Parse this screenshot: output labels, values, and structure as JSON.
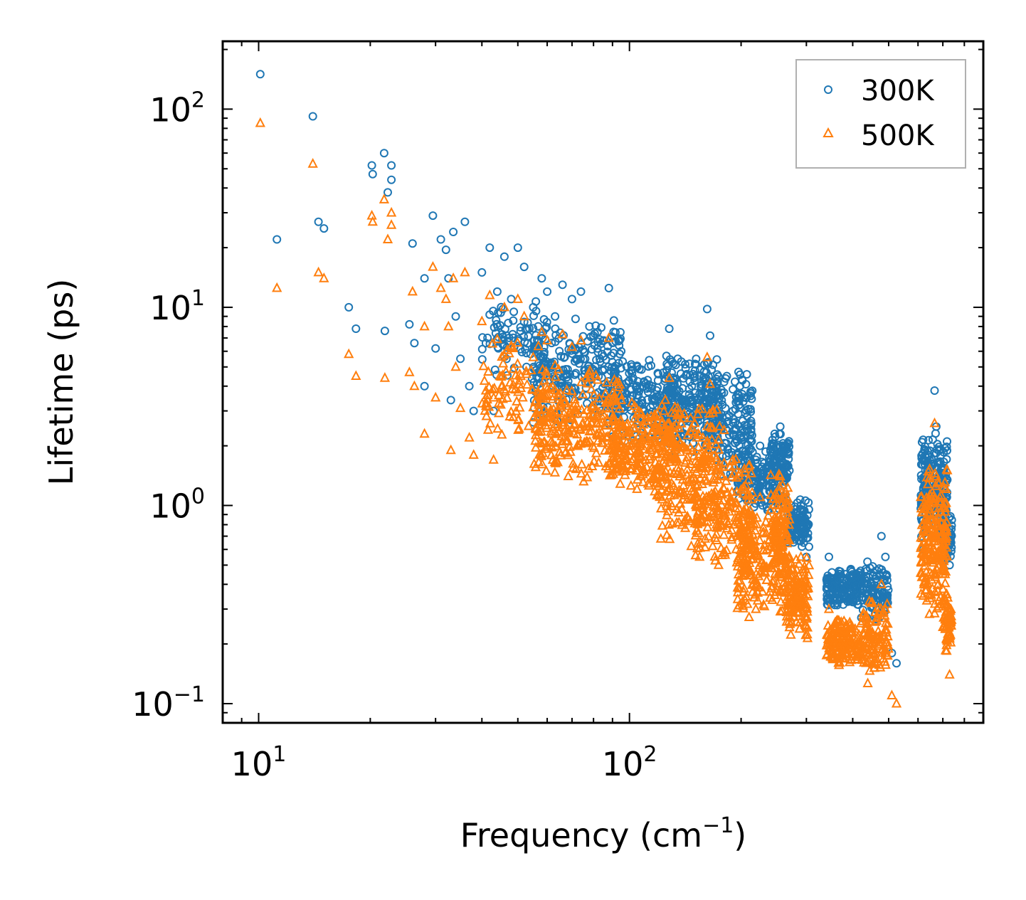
{
  "chart_data": {
    "type": "scatter",
    "title": "",
    "xlabel": "Frequency (cm",
    "xlabel_sup": "−1",
    "xlabel_end": ")",
    "ylabel": "Lifetime (ps)",
    "xscale": "log",
    "yscale": "log",
    "xlim": [
      8,
      900
    ],
    "ylim": [
      0.08,
      220
    ],
    "x_ticks": [
      {
        "value": 10,
        "base": "10",
        "exp": "1"
      },
      {
        "value": 100,
        "base": "10",
        "exp": "2"
      }
    ],
    "y_ticks": [
      {
        "value": 0.1,
        "base": "10",
        "exp": "−1"
      },
      {
        "value": 1,
        "base": "10",
        "exp": "0"
      },
      {
        "value": 10,
        "base": "10",
        "exp": "1"
      },
      {
        "value": 100,
        "base": "10",
        "exp": "2"
      }
    ],
    "legend_position": "top-right",
    "series": [
      {
        "name": "300K",
        "color": "#1f77b4",
        "marker": "circle",
        "points": [
          [
            10.1,
            150
          ],
          [
            11.2,
            22
          ],
          [
            14,
            92
          ],
          [
            14.5,
            27
          ],
          [
            15,
            25
          ],
          [
            17.5,
            10
          ],
          [
            18.3,
            7.8
          ],
          [
            20.2,
            52
          ],
          [
            20.3,
            47
          ],
          [
            21.8,
            60
          ],
          [
            21.9,
            7.6
          ],
          [
            22.3,
            38
          ],
          [
            22.8,
            52
          ],
          [
            22.8,
            44
          ],
          [
            25.5,
            8.2
          ],
          [
            26,
            21
          ],
          [
            26.3,
            6.6
          ],
          [
            28,
            14
          ],
          [
            28,
            4
          ],
          [
            29.5,
            29
          ],
          [
            30,
            6.2
          ],
          [
            31,
            22
          ],
          [
            32,
            19.5
          ],
          [
            32.5,
            14
          ],
          [
            33,
            3.4
          ],
          [
            33.5,
            24
          ],
          [
            34,
            9
          ],
          [
            35,
            5.5
          ],
          [
            36,
            27
          ],
          [
            37,
            4
          ],
          [
            38,
            3
          ],
          [
            40,
            15
          ],
          [
            41,
            6.6
          ],
          [
            42,
            20
          ],
          [
            43,
            3
          ],
          [
            44,
            12
          ],
          [
            46,
            18
          ],
          [
            48,
            11
          ],
          [
            50,
            20
          ],
          [
            52,
            16
          ],
          [
            55,
            10
          ],
          [
            58,
            14
          ],
          [
            60,
            12
          ],
          [
            63,
            9
          ],
          [
            66,
            13
          ],
          [
            70,
            11
          ],
          [
            74,
            12
          ],
          [
            78,
            8
          ],
          [
            82,
            7.5
          ],
          [
            88,
            12.5
          ],
          [
            95,
            6
          ],
          [
            105,
            5
          ],
          [
            115,
            4
          ],
          [
            128,
            7.8
          ],
          [
            135,
            5.5
          ],
          [
            150,
            4.5
          ],
          [
            162,
            9.8
          ],
          [
            165,
            7.2
          ],
          [
            180,
            4.2
          ],
          [
            190,
            3
          ],
          [
            200,
            2.2
          ],
          [
            210,
            1.6
          ],
          [
            225,
            2
          ],
          [
            240,
            1.7
          ],
          [
            255,
            2.5
          ],
          [
            270,
            1.5
          ],
          [
            290,
            1
          ],
          [
            300,
            0.55
          ],
          [
            345,
            0.55
          ],
          [
            370,
            0.45
          ],
          [
            410,
            0.35
          ],
          [
            440,
            0.4
          ],
          [
            478,
            0.7
          ],
          [
            490,
            0.55
          ],
          [
            510,
            0.18
          ],
          [
            525,
            0.16
          ],
          [
            620,
            0.6
          ],
          [
            650,
            1.2
          ],
          [
            665,
            3.8
          ],
          [
            672,
            2.5
          ],
          [
            690,
            1.2
          ],
          [
            710,
            0.8
          ],
          [
            730,
            0.5
          ]
        ],
        "clusters": [
          {
            "x": [
              40,
              60
            ],
            "y": [
              4,
              12
            ],
            "n": 90
          },
          {
            "x": [
              55,
              95
            ],
            "y": [
              2.5,
              9
            ],
            "n": 260
          },
          {
            "x": [
              90,
              135
            ],
            "y": [
              2,
              6
            ],
            "n": 180
          },
          {
            "x": [
              125,
              175
            ],
            "y": [
              1.8,
              6
            ],
            "n": 220
          },
          {
            "x": [
              160,
              215
            ],
            "y": [
              1.2,
              5
            ],
            "n": 180
          },
          {
            "x": [
              195,
              265
            ],
            "y": [
              0.9,
              2
            ],
            "n": 160
          },
          {
            "x": [
              240,
              270
            ],
            "y": [
              1.2,
              2.4
            ],
            "n": 90
          },
          {
            "x": [
              265,
              305
            ],
            "y": [
              0.6,
              1.1
            ],
            "n": 120
          },
          {
            "x": [
              340,
              420
            ],
            "y": [
              0.3,
              0.5
            ],
            "n": 160
          },
          {
            "x": [
              420,
              500
            ],
            "y": [
              0.25,
              0.55
            ],
            "n": 110
          },
          {
            "x": [
              610,
              720
            ],
            "y": [
              0.6,
              2.5
            ],
            "n": 200
          },
          {
            "x": [
              700,
              740
            ],
            "y": [
              0.5,
              0.95
            ],
            "n": 60
          }
        ]
      },
      {
        "name": "500K",
        "color": "#ff7f0e",
        "marker": "triangle",
        "points": [
          [
            10.1,
            85
          ],
          [
            11.2,
            12.5
          ],
          [
            14,
            53
          ],
          [
            14.5,
            15
          ],
          [
            15,
            14
          ],
          [
            17.5,
            5.8
          ],
          [
            18.3,
            4.5
          ],
          [
            20.2,
            29
          ],
          [
            20.3,
            27
          ],
          [
            21.8,
            35
          ],
          [
            21.9,
            4.4
          ],
          [
            22.3,
            22
          ],
          [
            22.8,
            30
          ],
          [
            22.8,
            26
          ],
          [
            25.5,
            4.7
          ],
          [
            26,
            12
          ],
          [
            26.3,
            4
          ],
          [
            28,
            8
          ],
          [
            28,
            2.3
          ],
          [
            29.5,
            16
          ],
          [
            30,
            3.5
          ],
          [
            31,
            12.5
          ],
          [
            32,
            11
          ],
          [
            32.5,
            8
          ],
          [
            33,
            1.9
          ],
          [
            33.5,
            14
          ],
          [
            34,
            5
          ],
          [
            35,
            3.1
          ],
          [
            36,
            15
          ],
          [
            37,
            2.2
          ],
          [
            38,
            1.8
          ],
          [
            40,
            8.5
          ],
          [
            41,
            3.8
          ],
          [
            42,
            11.5
          ],
          [
            43,
            1.7
          ],
          [
            44,
            6.9
          ],
          [
            46,
            10
          ],
          [
            48,
            6.4
          ],
          [
            50,
            11
          ],
          [
            52,
            9
          ],
          [
            55,
            5.6
          ],
          [
            58,
            7.5
          ],
          [
            60,
            6.8
          ],
          [
            63,
            5.1
          ],
          [
            66,
            7.3
          ],
          [
            70,
            6.3
          ],
          [
            74,
            6.8
          ],
          [
            78,
            4.6
          ],
          [
            82,
            4.3
          ],
          [
            88,
            7
          ],
          [
            95,
            3.4
          ],
          [
            105,
            2.9
          ],
          [
            115,
            2.3
          ],
          [
            128,
            4.4
          ],
          [
            135,
            3.1
          ],
          [
            150,
            2.6
          ],
          [
            162,
            5.6
          ],
          [
            165,
            4.1
          ],
          [
            180,
            2.4
          ],
          [
            190,
            1.7
          ],
          [
            200,
            1.2
          ],
          [
            210,
            0.9
          ],
          [
            225,
            1.1
          ],
          [
            240,
            0.95
          ],
          [
            255,
            1.4
          ],
          [
            270,
            0.85
          ],
          [
            290,
            0.55
          ],
          [
            300,
            0.3
          ],
          [
            345,
            0.3
          ],
          [
            370,
            0.25
          ],
          [
            410,
            0.2
          ],
          [
            440,
            0.22
          ],
          [
            478,
            0.4
          ],
          [
            490,
            0.3
          ],
          [
            510,
            0.11
          ],
          [
            525,
            0.1
          ],
          [
            620,
            0.35
          ],
          [
            650,
            0.7
          ],
          [
            665,
            2.6
          ],
          [
            672,
            1.4
          ],
          [
            690,
            0.7
          ],
          [
            710,
            0.45
          ],
          [
            730,
            0.14
          ]
        ],
        "clusters": [
          {
            "x": [
              40,
              60
            ],
            "y": [
              2,
              7
            ],
            "n": 90
          },
          {
            "x": [
              55,
              95
            ],
            "y": [
              1.3,
              5
            ],
            "n": 280
          },
          {
            "x": [
              90,
              135
            ],
            "y": [
              1.1,
              3.5
            ],
            "n": 200
          },
          {
            "x": [
              115,
              175
            ],
            "y": [
              0.6,
              3.5
            ],
            "n": 240
          },
          {
            "x": [
              150,
              215
            ],
            "y": [
              0.45,
              2
            ],
            "n": 200
          },
          {
            "x": [
              195,
              265
            ],
            "y": [
              0.25,
              1
            ],
            "n": 200
          },
          {
            "x": [
              240,
              270
            ],
            "y": [
              0.4,
              1.6
            ],
            "n": 90
          },
          {
            "x": [
              265,
              305
            ],
            "y": [
              0.2,
              0.6
            ],
            "n": 140
          },
          {
            "x": [
              340,
              420
            ],
            "y": [
              0.15,
              0.28
            ],
            "n": 160
          },
          {
            "x": [
              420,
              500
            ],
            "y": [
              0.12,
              0.35
            ],
            "n": 110
          },
          {
            "x": [
              610,
              720
            ],
            "y": [
              0.25,
              1.8
            ],
            "n": 220
          },
          {
            "x": [
              700,
              740
            ],
            "y": [
              0.18,
              0.4
            ],
            "n": 60
          }
        ]
      }
    ]
  }
}
